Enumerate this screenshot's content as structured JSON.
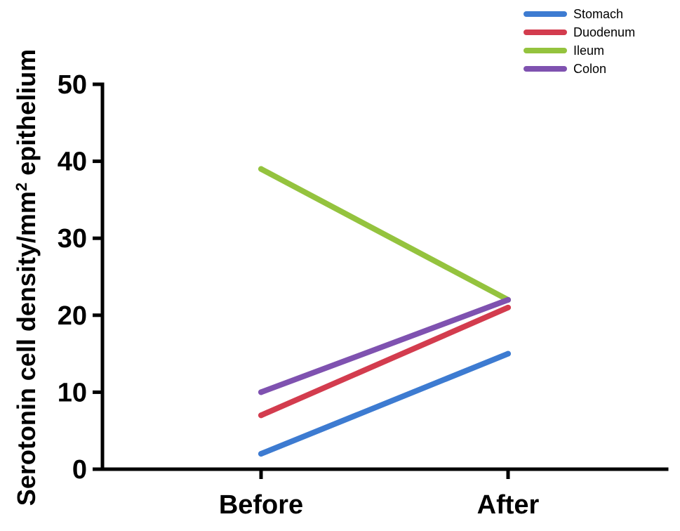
{
  "chart_data": {
    "type": "line",
    "categories": [
      "Before",
      "After"
    ],
    "series": [
      {
        "name": "Stomach",
        "values": [
          2,
          15
        ],
        "color": "#3d7bd1"
      },
      {
        "name": "Duodenum",
        "values": [
          7,
          21
        ],
        "color": "#d33c4e"
      },
      {
        "name": "Ileum",
        "values": [
          39,
          22
        ],
        "color": "#94c33e"
      },
      {
        "name": "Colon",
        "values": [
          10,
          22
        ],
        "color": "#7f52b0"
      }
    ],
    "ylabel": "Serotonin cell density/mm",
    "ylabel_superscript": "2",
    "ylabel_suffix": " epithelium",
    "ylim": [
      0,
      50
    ],
    "yticks": [
      0,
      10,
      20,
      30,
      40,
      50
    ],
    "grid": false,
    "legend_position": "top-right"
  }
}
